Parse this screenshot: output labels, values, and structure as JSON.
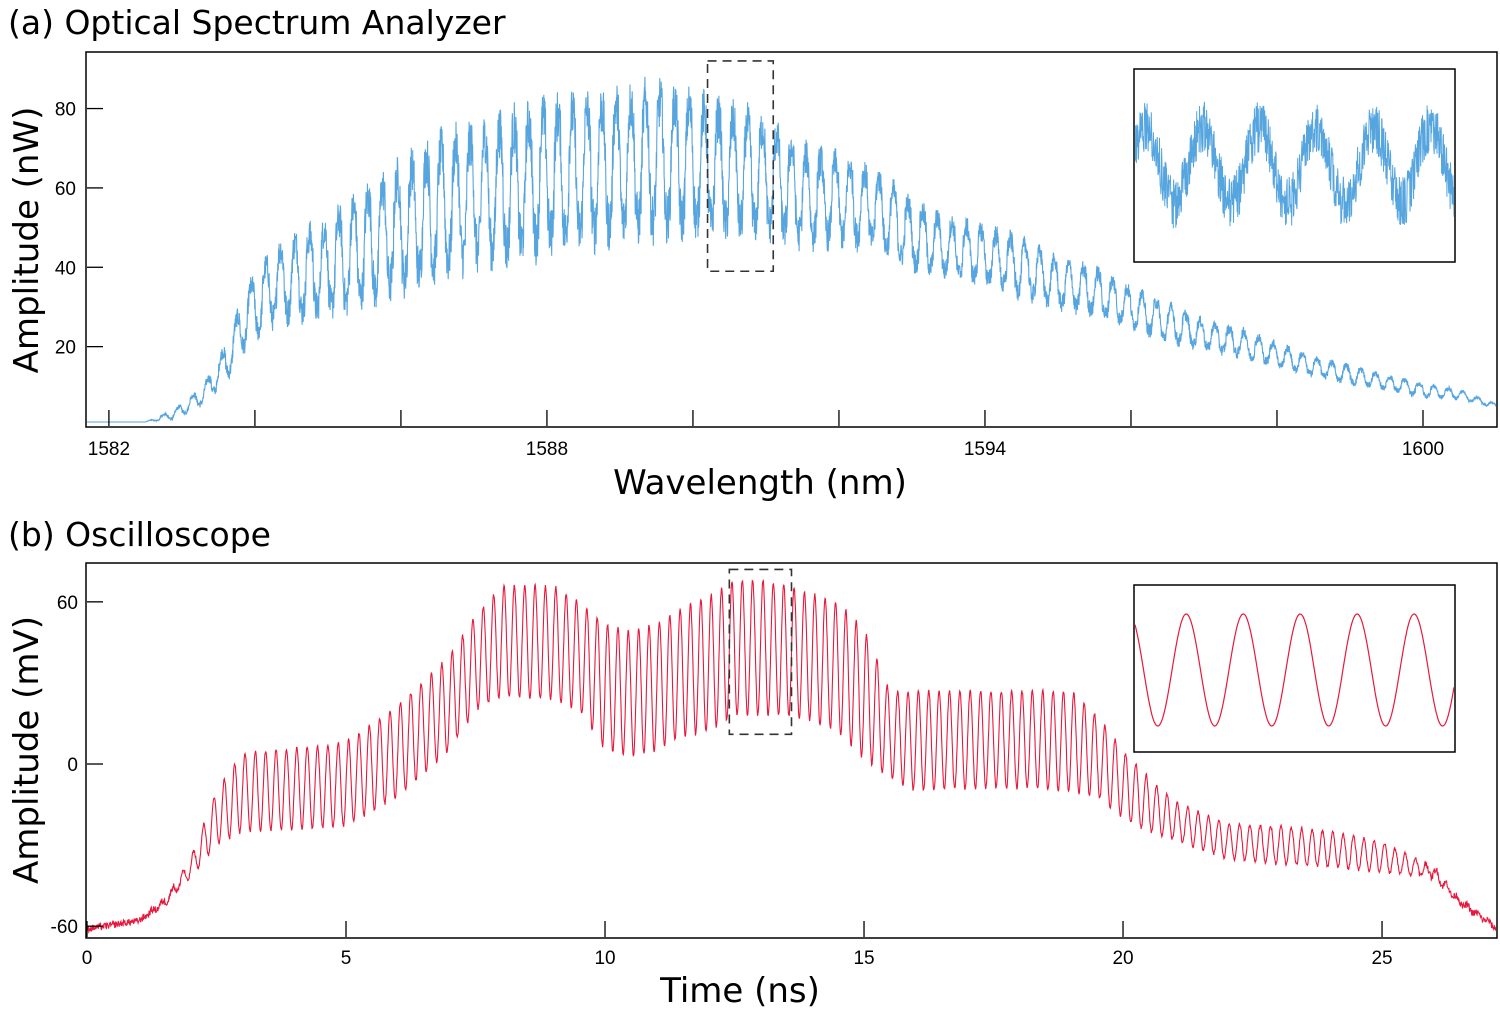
{
  "chart_data": [
    {
      "id": "a",
      "type": "line",
      "title": "(a) Optical Spectrum Analyzer",
      "xlabel": "Wavelength (nm)",
      "ylabel": "Amplitude (nW)",
      "xlim": [
        1581.7,
        1601.0
      ],
      "ylim": [
        0,
        94
      ],
      "x_ticks": [
        1582,
        1588,
        1594,
        1600
      ],
      "x_minor_ticks": [
        1584,
        1586,
        1590,
        1592,
        1596,
        1598
      ],
      "y_ticks": [
        20,
        40,
        60,
        80
      ],
      "color": "#56a5de",
      "grid": false,
      "envelope": {
        "x": [
          1581.7,
          1582.5,
          1582.9,
          1583.3,
          1583.6,
          1583.9,
          1584.3,
          1585.0,
          1585.5,
          1586.0,
          1586.5,
          1587.0,
          1587.5,
          1588.0,
          1588.5,
          1589.0,
          1589.5,
          1590.0,
          1590.5,
          1591.0,
          1591.5,
          1592.0,
          1592.5,
          1593.0,
          1593.5,
          1594.0,
          1594.5,
          1595.0,
          1595.5,
          1596.0,
          1596.5,
          1597.0,
          1597.5,
          1598.0,
          1598.5,
          1599.0,
          1599.5,
          1600.0,
          1600.5,
          1601.0
        ],
        "mean": [
          1,
          1,
          3,
          8,
          16,
          28,
          36,
          40,
          45,
          50,
          55,
          58,
          60,
          63,
          64,
          66,
          67,
          66,
          64,
          63,
          58,
          57,
          55,
          48,
          45,
          43,
          40,
          36,
          34,
          30,
          26,
          23,
          21,
          18,
          15,
          13,
          11,
          9,
          8,
          5
        ],
        "ripple_amplitude": [
          0,
          0,
          1,
          2,
          4,
          6,
          8,
          10,
          12,
          13,
          14,
          14,
          15,
          15,
          15,
          15,
          15,
          14,
          13,
          12,
          10,
          9,
          8,
          7,
          6,
          6,
          6,
          5,
          5,
          4,
          4,
          3,
          3,
          2.5,
          2,
          2,
          1.5,
          1.5,
          1,
          0.5
        ]
      },
      "ripple_period_nm": 0.2,
      "highlight_box": {
        "x": [
          1590.2,
          1591.1
        ],
        "y": [
          39,
          92
        ]
      },
      "inset": "zoom of highlighted region"
    },
    {
      "id": "b",
      "type": "line",
      "title": "(b) Oscilloscope",
      "xlabel": "Time (ns)",
      "ylabel": "Amplitude (mV)",
      "xlim": [
        0,
        27.2
      ],
      "ylim": [
        -64,
        74
      ],
      "x_ticks": [
        0,
        5,
        10,
        15,
        20,
        25
      ],
      "y_ticks": [
        -60,
        0,
        60
      ],
      "y_tick_labels": [
        "-60",
        "0",
        "60"
      ],
      "color": "#e8183c",
      "grid": false,
      "envelope": {
        "t": [
          0,
          1.0,
          1.5,
          2.0,
          2.5,
          3.0,
          4.0,
          5.0,
          6.0,
          7.0,
          7.5,
          8.0,
          9.0,
          9.5,
          10.0,
          10.5,
          11.0,
          11.5,
          12.0,
          12.5,
          13.0,
          13.5,
          14.0,
          14.5,
          15.0,
          15.5,
          16.0,
          17.0,
          18.0,
          19.0,
          19.5,
          20.0,
          20.5,
          21.0,
          22.0,
          23.0,
          24.0,
          25.0,
          26.0,
          26.5,
          27.2
        ],
        "upper": [
          -61,
          -58,
          -50,
          -35,
          -10,
          4,
          6,
          8,
          22,
          40,
          55,
          66,
          66,
          60,
          52,
          49,
          52,
          58,
          62,
          68,
          68,
          66,
          63,
          60,
          50,
          27,
          27,
          27,
          27,
          27,
          18,
          5,
          -5,
          -14,
          -22,
          -23,
          -25,
          -29,
          -38,
          -50,
          -60
        ],
        "lower": [
          -61,
          -58,
          -52,
          -42,
          -30,
          -25,
          -24,
          -23,
          -12,
          5,
          20,
          25,
          24,
          20,
          5,
          3,
          5,
          10,
          12,
          18,
          18,
          18,
          16,
          12,
          2,
          -5,
          -10,
          -9,
          -9,
          -10,
          -12,
          -20,
          -25,
          -28,
          -35,
          -37,
          -38,
          -40,
          -42,
          -52,
          -61
        ],
        "osc_period_ns": 0.2
      },
      "highlight_box": {
        "t": [
          12.4,
          13.6
        ],
        "y": [
          11,
          72
        ]
      },
      "inset": "zoom of highlighted region"
    }
  ]
}
